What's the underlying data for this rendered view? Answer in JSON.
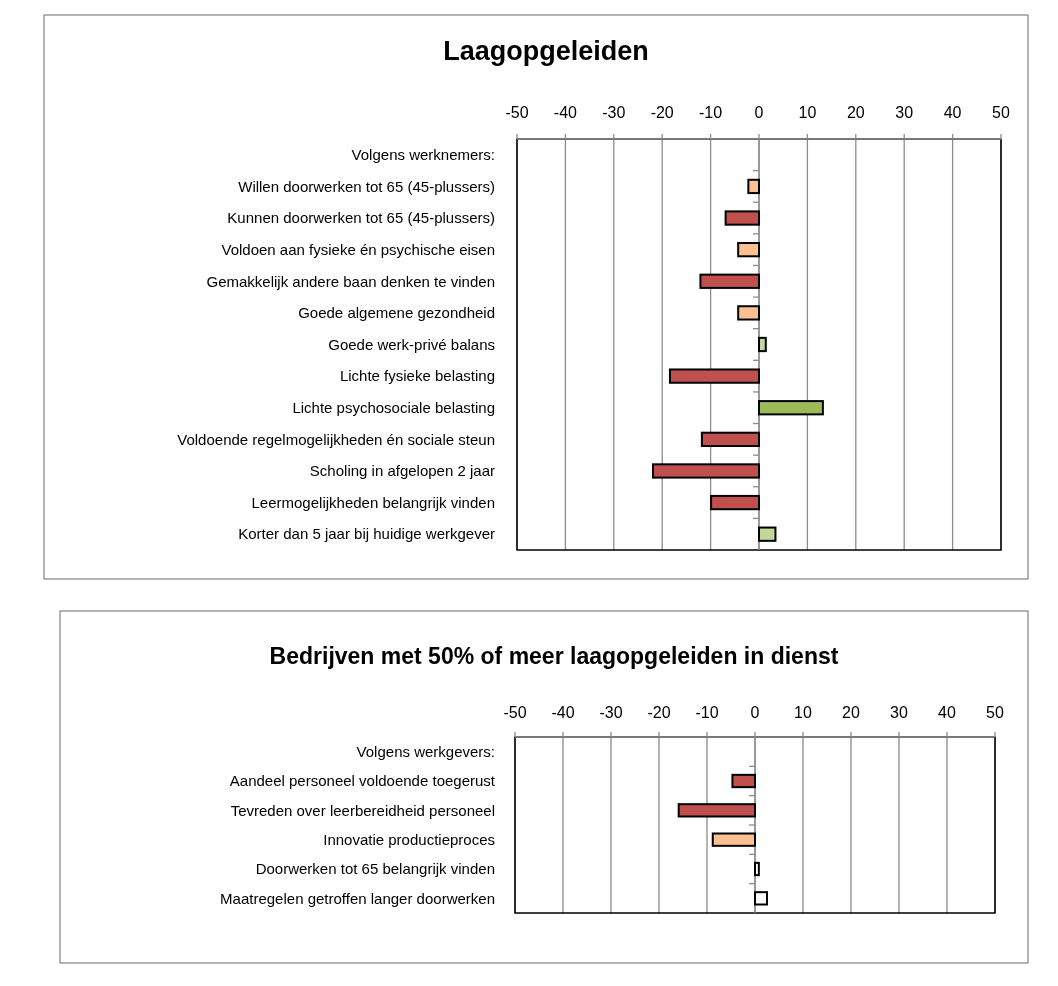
{
  "chart_data": [
    {
      "type": "bar",
      "orientation": "horizontal",
      "title": "Laagopgeleiden",
      "ylabel": "Volgens werknemers:",
      "categories": [
        null,
        "Willen doorwerken tot 65 (45-plussers)",
        "Kunnen doorwerken tot 65 (45-plussers)",
        "Voldoen aan fysieke én psychische eisen",
        "Gemakkelijk andere baan denken te vinden",
        "Goede algemene gezondheid",
        "Goede werk-privé balans",
        "Lichte fysieke belasting",
        "Lichte psychosociale belasting",
        "Voldoende regelmogelijkheden én sociale steun",
        "Scholing in afgelopen 2 jaar",
        "Leermogelijkheden belangrijk vinden",
        "Korter dan 5 jaar bij huidige werkgever"
      ],
      "values": [
        null,
        -2.2,
        -6.9,
        -4.3,
        -12.1,
        -4.3,
        1.4,
        -18.4,
        13.2,
        -11.8,
        -21.9,
        -9.9,
        3.4
      ],
      "colors": [
        null,
        "#fac090",
        "#c0504d",
        "#fac090",
        "#c0504d",
        "#fac090",
        "#c3d69b",
        "#c0504d",
        "#9bbb59",
        "#c0504d",
        "#c0504d",
        "#c0504d",
        "#c3d69b"
      ],
      "xlim": [
        -50,
        50
      ],
      "xticks": [
        -50,
        -40,
        -30,
        -20,
        -10,
        0,
        10,
        20,
        30,
        40,
        50
      ],
      "grid": "x"
    },
    {
      "type": "bar",
      "orientation": "horizontal",
      "title": "Bedrijven met 50% of meer laagopgeleiden in dienst",
      "ylabel": "Volgens werkgevers:",
      "categories": [
        null,
        "Aandeel personeel voldoende toegerust",
        "Tevreden over leerbereidheid personeel",
        "Innovatie productieproces",
        "Doorwerken tot 65 belangrijk vinden",
        "Maatregelen getroffen langer doorwerken"
      ],
      "values": [
        null,
        -4.7,
        -15.9,
        -8.8,
        0.8,
        2.5
      ],
      "colors": [
        null,
        "#c0504d",
        "#c0504d",
        "#fac090",
        "#ffffff",
        "#ffffff"
      ],
      "xlim": [
        -50,
        50
      ],
      "xticks": [
        -50,
        -40,
        -30,
        -20,
        -10,
        0,
        10,
        20,
        30,
        40,
        50
      ],
      "grid": "x"
    }
  ]
}
